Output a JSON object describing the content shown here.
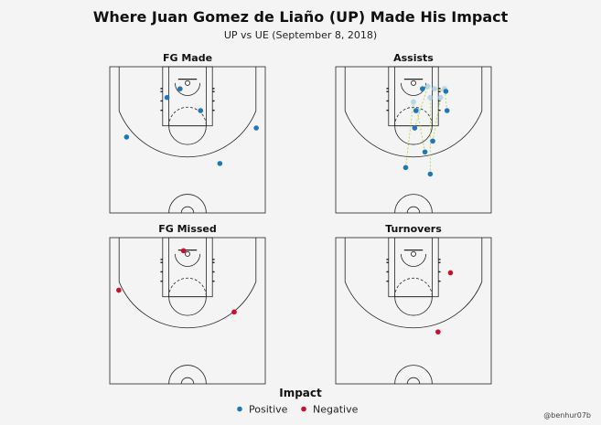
{
  "title": "Where Juan Gomez de Liaño (UP) Made His Impact",
  "subtitle": "UP vs UE (September 8, 2018)",
  "credit": "@benhur07b",
  "colors": {
    "positive": "#1f77b4",
    "negative": "#c8102e",
    "court_line": "#222222"
  },
  "chart_data": {
    "type": "scatter",
    "title": "Where Juan Gomez de Liaño (UP) Made His Impact",
    "subtitle": "UP vs UE (September 8, 2018)",
    "court": "basketball half-court (rim at top)",
    "coordinate_note": "x = feet from left sideline (0–50), y = feet from baseline (0–47)",
    "legend": {
      "title": "Impact",
      "placement": "bottom-center",
      "entries": [
        {
          "label": "Positive",
          "color": "#1f77b4"
        },
        {
          "label": "Negative",
          "color": "#c8102e"
        }
      ]
    },
    "panels": [
      {
        "name": "FG Made",
        "points": [
          {
            "x": 18.4,
            "y": 9.9,
            "impact": "Positive"
          },
          {
            "x": 22.6,
            "y": 7.1,
            "impact": "Positive"
          },
          {
            "x": 29.2,
            "y": 14.1,
            "impact": "Positive"
          },
          {
            "x": 47.1,
            "y": 19.7,
            "impact": "Positive"
          },
          {
            "x": 5.4,
            "y": 22.6,
            "impact": "Positive"
          },
          {
            "x": 35.4,
            "y": 31.1,
            "impact": "Positive"
          }
        ]
      },
      {
        "name": "Assists",
        "points": [
          {
            "x": 27.9,
            "y": 7.1,
            "impact": "Positive",
            "to_x": 27.9,
            "to_y": 7.1
          },
          {
            "x": 25.8,
            "y": 14.1,
            "impact": "Positive",
            "to_x": 25.8,
            "to_y": 14.1
          },
          {
            "x": 35.4,
            "y": 7.9,
            "impact": "Positive",
            "to_x": 31.7,
            "to_y": 7.1
          },
          {
            "x": 35.8,
            "y": 14.1,
            "impact": "Positive",
            "to_x": 35.0,
            "to_y": 7.1
          },
          {
            "x": 25.4,
            "y": 19.7,
            "impact": "Positive",
            "to_x": 29.6,
            "to_y": 6.3
          },
          {
            "x": 31.2,
            "y": 23.9,
            "impact": "Positive",
            "to_x": 33.7,
            "to_y": 9.9
          },
          {
            "x": 28.7,
            "y": 27.4,
            "impact": "Positive",
            "to_x": 26.2,
            "to_y": 14.1
          },
          {
            "x": 22.5,
            "y": 32.4,
            "impact": "Positive",
            "to_x": 25.0,
            "to_y": 11.3
          },
          {
            "x": 30.4,
            "y": 34.5,
            "impact": "Positive",
            "to_x": 30.4,
            "to_y": 9.9
          }
        ]
      },
      {
        "name": "FG Missed",
        "points": [
          {
            "x": 23.7,
            "y": 4.2,
            "impact": "Negative"
          },
          {
            "x": 2.9,
            "y": 16.9,
            "impact": "Negative"
          },
          {
            "x": 40.0,
            "y": 23.9,
            "impact": "Negative"
          }
        ]
      },
      {
        "name": "Turnovers",
        "points": [
          {
            "x": 36.9,
            "y": 11.3,
            "impact": "Negative"
          },
          {
            "x": 32.9,
            "y": 30.3,
            "impact": "Negative"
          }
        ]
      }
    ]
  }
}
